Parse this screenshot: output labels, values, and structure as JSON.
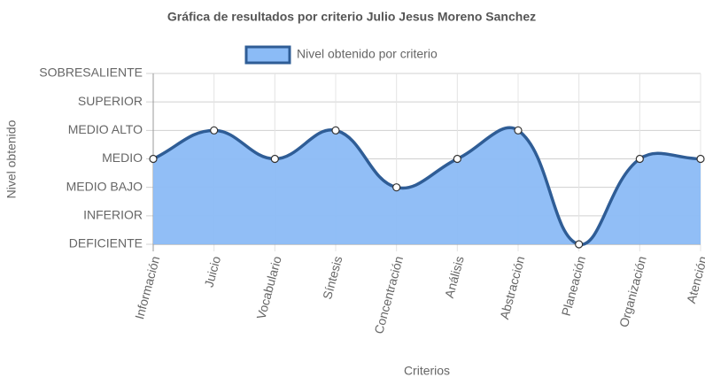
{
  "chart_data": {
    "type": "area",
    "title": "Gráfica de resultados por criterio Julio Jesus Moreno Sanchez",
    "x_label": "Criterios",
    "y_label": "Nivel obtenido",
    "categories": [
      "Información",
      "Juicio",
      "Vocabulario",
      "Síntesis",
      "Concentración",
      "Análisis",
      "Abstracción",
      "Planeación",
      "Organización",
      "Atención"
    ],
    "series": [
      {
        "name": "Nivel obtenido por criterio",
        "color": "#2f5d96",
        "fill": "#8bbbf6",
        "values": [
          3,
          4,
          3,
          4,
          2,
          3,
          4,
          0,
          3,
          3
        ]
      }
    ],
    "ylim": [
      0,
      6
    ],
    "yticks": [
      {
        "value": 0,
        "label": "DEFICIENTE"
      },
      {
        "value": 1,
        "label": "INFERIOR"
      },
      {
        "value": 2,
        "label": "MEDIO BAJO"
      },
      {
        "value": 3,
        "label": "MEDIO"
      },
      {
        "value": 4,
        "label": "MEDIO ALTO"
      },
      {
        "value": 5,
        "label": "SUPERIOR"
      },
      {
        "value": 6,
        "label": "SOBRESALIENTE"
      }
    ],
    "grid": true
  }
}
